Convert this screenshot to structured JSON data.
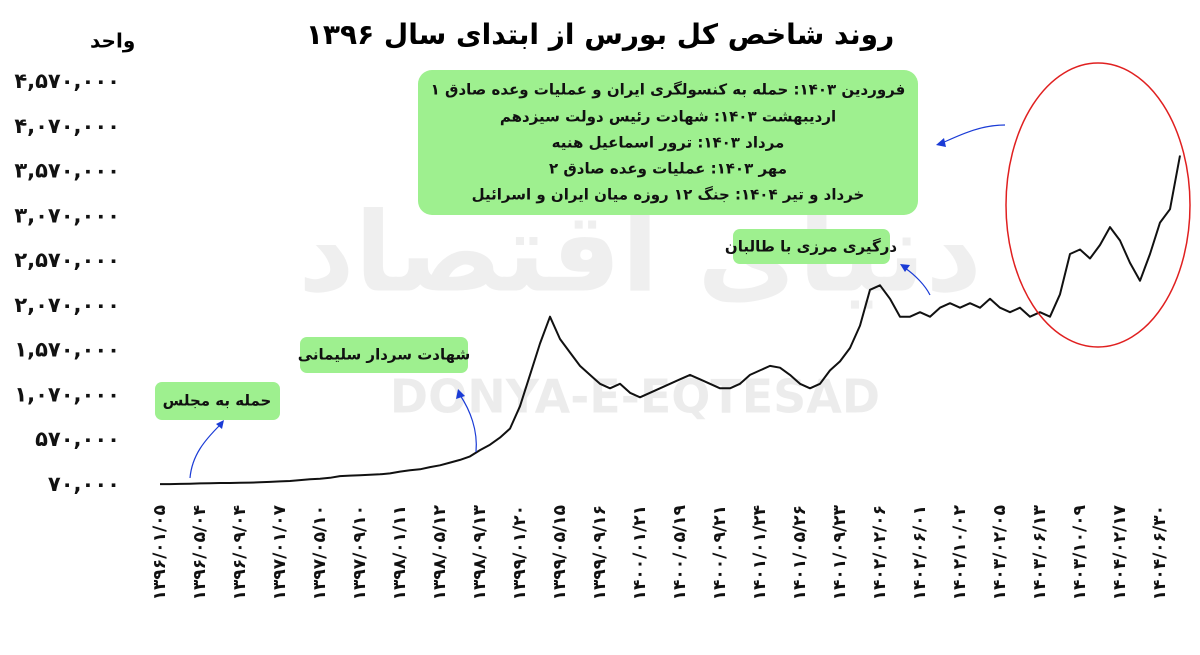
{
  "chart_data": {
    "type": "line",
    "title": "روند شاخص کل بورس از ابتدای سال ۱۳۹۶",
    "y_label": "واحد",
    "watermark": [
      "دنیای اقتصاد",
      "DONYA-E-EQTESAD"
    ],
    "annotations": [
      "حمله به مجلس",
      "شهادت سردار سلیمانی",
      "درگیری مرزی با طالبان"
    ],
    "events": [
      "فروردین ۱۴۰۳: حمله به کنسولگری ایران و عملیات وعده صادق ۱",
      "اردیبهشت ۱۴۰۳: شهادت رئیس دولت سیزدهم",
      "مرداد ۱۴۰۳: ترور اسماعیل هنیه",
      "مهر ۱۴۰۳: عملیات وعده صادق ۲",
      "خرداد و تیر ۱۴۰۴: جنگ ۱۲ روزه میان ایران و اسرائیل"
    ],
    "color": "#111111",
    "ylim": [
      40000,
      4700000
    ],
    "yticks": [
      {
        "value": 70000,
        "label": "۷۰,۰۰۰"
      },
      {
        "value": 570000,
        "label": "۵۷۰,۰۰۰"
      },
      {
        "value": 1070000,
        "label": "۱,۰۷۰,۰۰۰"
      },
      {
        "value": 1570000,
        "label": "۱,۵۷۰,۰۰۰"
      },
      {
        "value": 2070000,
        "label": "۲,۰۷۰,۰۰۰"
      },
      {
        "value": 2570000,
        "label": "۲,۵۷۰,۰۰۰"
      },
      {
        "value": 3070000,
        "label": "۳,۰۷۰,۰۰۰"
      },
      {
        "value": 3570000,
        "label": "۳,۵۷۰,۰۰۰"
      },
      {
        "value": 4070000,
        "label": "۴,۰۷۰,۰۰۰"
      },
      {
        "value": 4570000,
        "label": "۴,۵۷۰,۰۰۰"
      }
    ],
    "categories": [
      "۱۳۹۶/۰۱/۰۵",
      null,
      null,
      null,
      "۱۳۹۶/۰۵/۰۴",
      null,
      null,
      null,
      "۱۳۹۶/۰۹/۰۴",
      null,
      null,
      null,
      "۱۳۹۷/۰۱/۰۷",
      null,
      null,
      null,
      "۱۳۹۷/۰۵/۱۰",
      null,
      null,
      null,
      "۱۳۹۷/۰۹/۱۰",
      null,
      null,
      null,
      "۱۳۹۸/۰۱/۱۱",
      null,
      null,
      null,
      "۱۳۹۸/۰۵/۱۲",
      null,
      null,
      null,
      "۱۳۹۸/۰۹/۱۳",
      null,
      null,
      null,
      "۱۳۹۹/۰۱/۲۰",
      null,
      null,
      null,
      "۱۳۹۹/۰۵/۱۵",
      null,
      null,
      null,
      "۱۳۹۹/۰۹/۱۶",
      null,
      null,
      null,
      "۱۴۰۰/۰۱/۲۱",
      null,
      null,
      null,
      "۱۴۰۰/۰۵/۱۹",
      null,
      null,
      null,
      "۱۴۰۰/۰۹/۲۱",
      null,
      null,
      null,
      "۱۴۰۱/۰۱/۲۴",
      null,
      null,
      null,
      "۱۴۰۱/۰۵/۲۶",
      null,
      null,
      null,
      "۱۴۰۱/۰۹/۲۳",
      null,
      null,
      null,
      "۱۴۰۲/۰۲/۰۶",
      null,
      null,
      null,
      "۱۴۰۲/۰۶/۰۱",
      null,
      null,
      null,
      "۱۴۰۲/۱۰/۰۲",
      null,
      null,
      null,
      "۱۴۰۳/۰۲/۰۵",
      null,
      null,
      null,
      "۱۴۰۳/۰۶/۱۳",
      null,
      null,
      null,
      "۱۴۰۳/۱۰/۰۹",
      null,
      null,
      null,
      "۱۴۰۴/۰۲/۱۷",
      null,
      null,
      null,
      "۱۴۰۴/۰۶/۳۰",
      null,
      null
    ],
    "values": [
      80000,
      80000,
      82000,
      85000,
      88000,
      90000,
      92000,
      93000,
      95000,
      97000,
      100000,
      105000,
      110000,
      115000,
      125000,
      135000,
      140000,
      150000,
      170000,
      175000,
      180000,
      185000,
      190000,
      200000,
      220000,
      235000,
      245000,
      270000,
      290000,
      320000,
      350000,
      390000,
      460000,
      520000,
      600000,
      700000,
      950000,
      1300000,
      1650000,
      1950000,
      1700000,
      1550000,
      1400000,
      1300000,
      1200000,
      1150000,
      1200000,
      1100000,
      1050000,
      1100000,
      1150000,
      1200000,
      1250000,
      1300000,
      1250000,
      1200000,
      1150000,
      1150000,
      1200000,
      1300000,
      1350000,
      1400000,
      1380000,
      1300000,
      1200000,
      1150000,
      1200000,
      1350000,
      1450000,
      1600000,
      1850000,
      2250000,
      2300000,
      2150000,
      1950000,
      1950000,
      2000000,
      1950000,
      2050000,
      2100000,
      2050000,
      2100000,
      2050000,
      2150000,
      2050000,
      2000000,
      2050000,
      1950000,
      2000000,
      1950000,
      2200000,
      2650000,
      2700000,
      2600000,
      2750000,
      2950000,
      2800000,
      2550000,
      2350000,
      2650000,
      3000000,
      3150000,
      3750000
    ]
  }
}
